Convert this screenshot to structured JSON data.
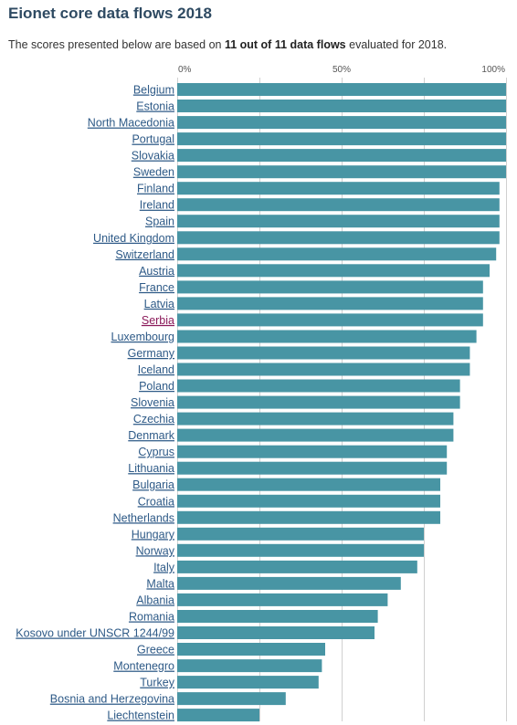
{
  "header": {
    "title": "Eionet core data flows 2018",
    "subtitle_prefix": "The scores presented below are based on ",
    "subtitle_bold": "11 out of 11 data flows",
    "subtitle_suffix": " evaluated for 2018."
  },
  "colors": {
    "bar": "#4895a4",
    "link": "#2e5a87",
    "visited_link": "#8b1a5a",
    "grid": "#d0d0d0",
    "title": "#2e4a62"
  },
  "chart_data": {
    "type": "bar",
    "orientation": "horizontal",
    "title": "Eionet core data flows 2018",
    "xlim": [
      0,
      100
    ],
    "ticks": [
      {
        "value": 0,
        "label": "0%"
      },
      {
        "value": 50,
        "label": "50%"
      },
      {
        "value": 100,
        "label": "100%"
      }
    ],
    "grid": true,
    "categories": [
      "Belgium",
      "Estonia",
      "North Macedonia",
      "Portugal",
      "Slovakia",
      "Sweden",
      "Finland",
      "Ireland",
      "Spain",
      "United Kingdom",
      "Switzerland",
      "Austria",
      "France",
      "Latvia",
      "Serbia",
      "Luxembourg",
      "Germany",
      "Iceland",
      "Poland",
      "Slovenia",
      "Czechia",
      "Denmark",
      "Cyprus",
      "Lithuania",
      "Bulgaria",
      "Croatia",
      "Netherlands",
      "Hungary",
      "Norway",
      "Italy",
      "Malta",
      "Albania",
      "Romania",
      "Kosovo under UNSCR 1244/99",
      "Greece",
      "Montenegro",
      "Turkey",
      "Bosnia and Herzegovina",
      "Liechtenstein"
    ],
    "values": [
      100,
      100,
      100,
      100,
      100,
      100,
      98,
      98,
      98,
      98,
      97,
      95,
      93,
      93,
      93,
      91,
      89,
      89,
      86,
      86,
      84,
      84,
      82,
      82,
      80,
      80,
      80,
      75,
      75,
      73,
      68,
      64,
      61,
      60,
      45,
      44,
      43,
      33,
      25
    ],
    "highlighted": [
      "Serbia"
    ]
  }
}
